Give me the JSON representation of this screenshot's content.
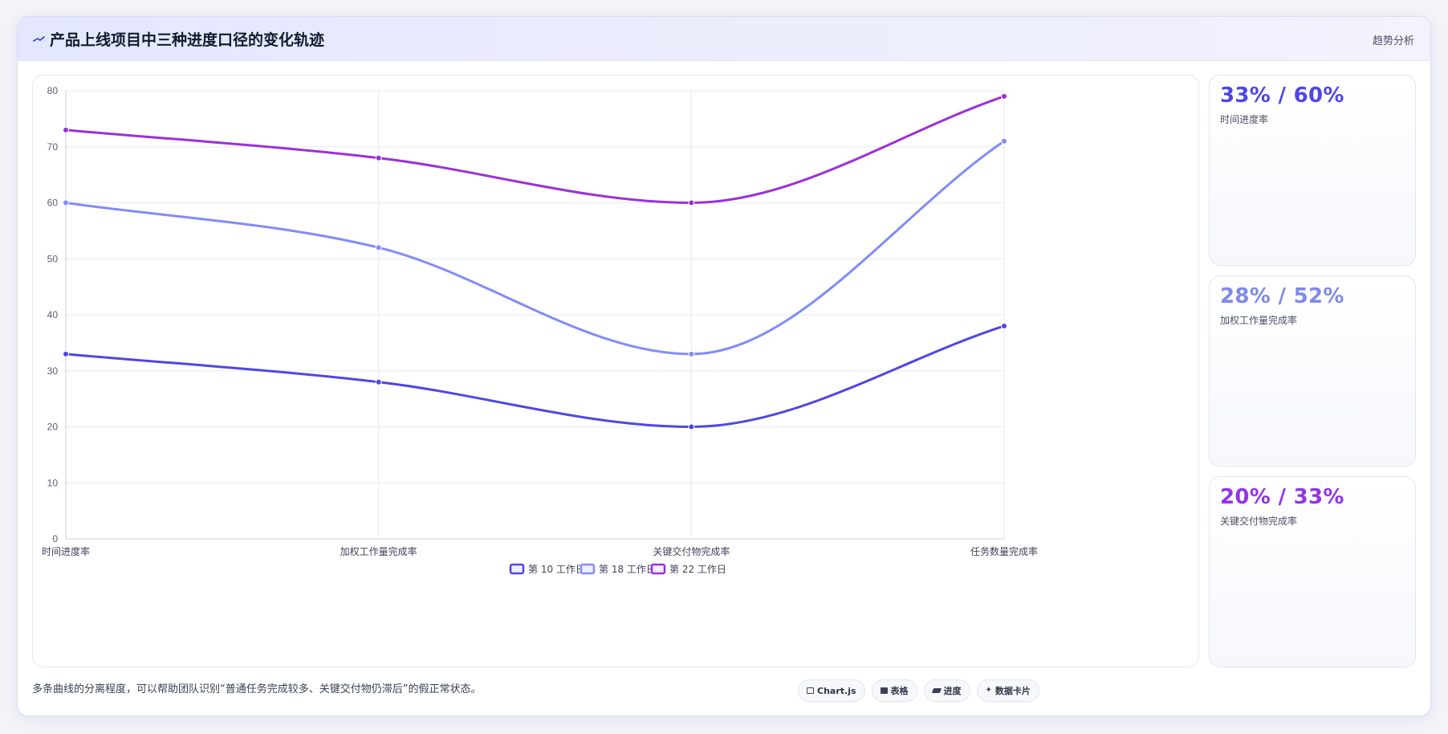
{
  "header": {
    "title": "产品上线项目中三种进度口径的变化轨迹",
    "tag": "趋势分析"
  },
  "kpis": [
    {
      "value": "33% / 60%",
      "label": "时间进度率",
      "color": "#4f46e5"
    },
    {
      "value": "28% / 52%",
      "label": "加权工作量完成率",
      "color": "#7f8ae6"
    },
    {
      "value": "20% / 33%",
      "label": "关键交付物完成率",
      "color": "#9333ea"
    }
  ],
  "footer": {
    "note": "多条曲线的分离程度，可以帮助团队识别“普通任务完成较多、关键交付物仍滞后”的假正常状态。",
    "chips": [
      {
        "icon": "chart-icon",
        "label": "Chart.js"
      },
      {
        "icon": "table-icon",
        "label": "表格"
      },
      {
        "icon": "progress-icon",
        "label": "进度"
      },
      {
        "icon": "card-icon",
        "label": "数据卡片"
      }
    ]
  },
  "chart_data": {
    "type": "line",
    "categories": [
      "时间进度率",
      "加权工作量完成率",
      "关键交付物完成率",
      "任务数量完成率"
    ],
    "series": [
      {
        "name": "第 10 工作日",
        "values": [
          33,
          28,
          20,
          38
        ],
        "color": "#4f46e5"
      },
      {
        "name": "第 18 工作日",
        "values": [
          60,
          52,
          33,
          71
        ],
        "color": "#818cf8"
      },
      {
        "name": "第 22 工作日",
        "values": [
          73,
          68,
          60,
          79
        ],
        "color": "#9b30d9"
      }
    ],
    "ylim": [
      0,
      80
    ],
    "yticks": [
      0,
      10,
      20,
      30,
      40,
      50,
      60,
      70,
      80
    ],
    "grid": true,
    "legend": "bottom",
    "smooth": true
  }
}
